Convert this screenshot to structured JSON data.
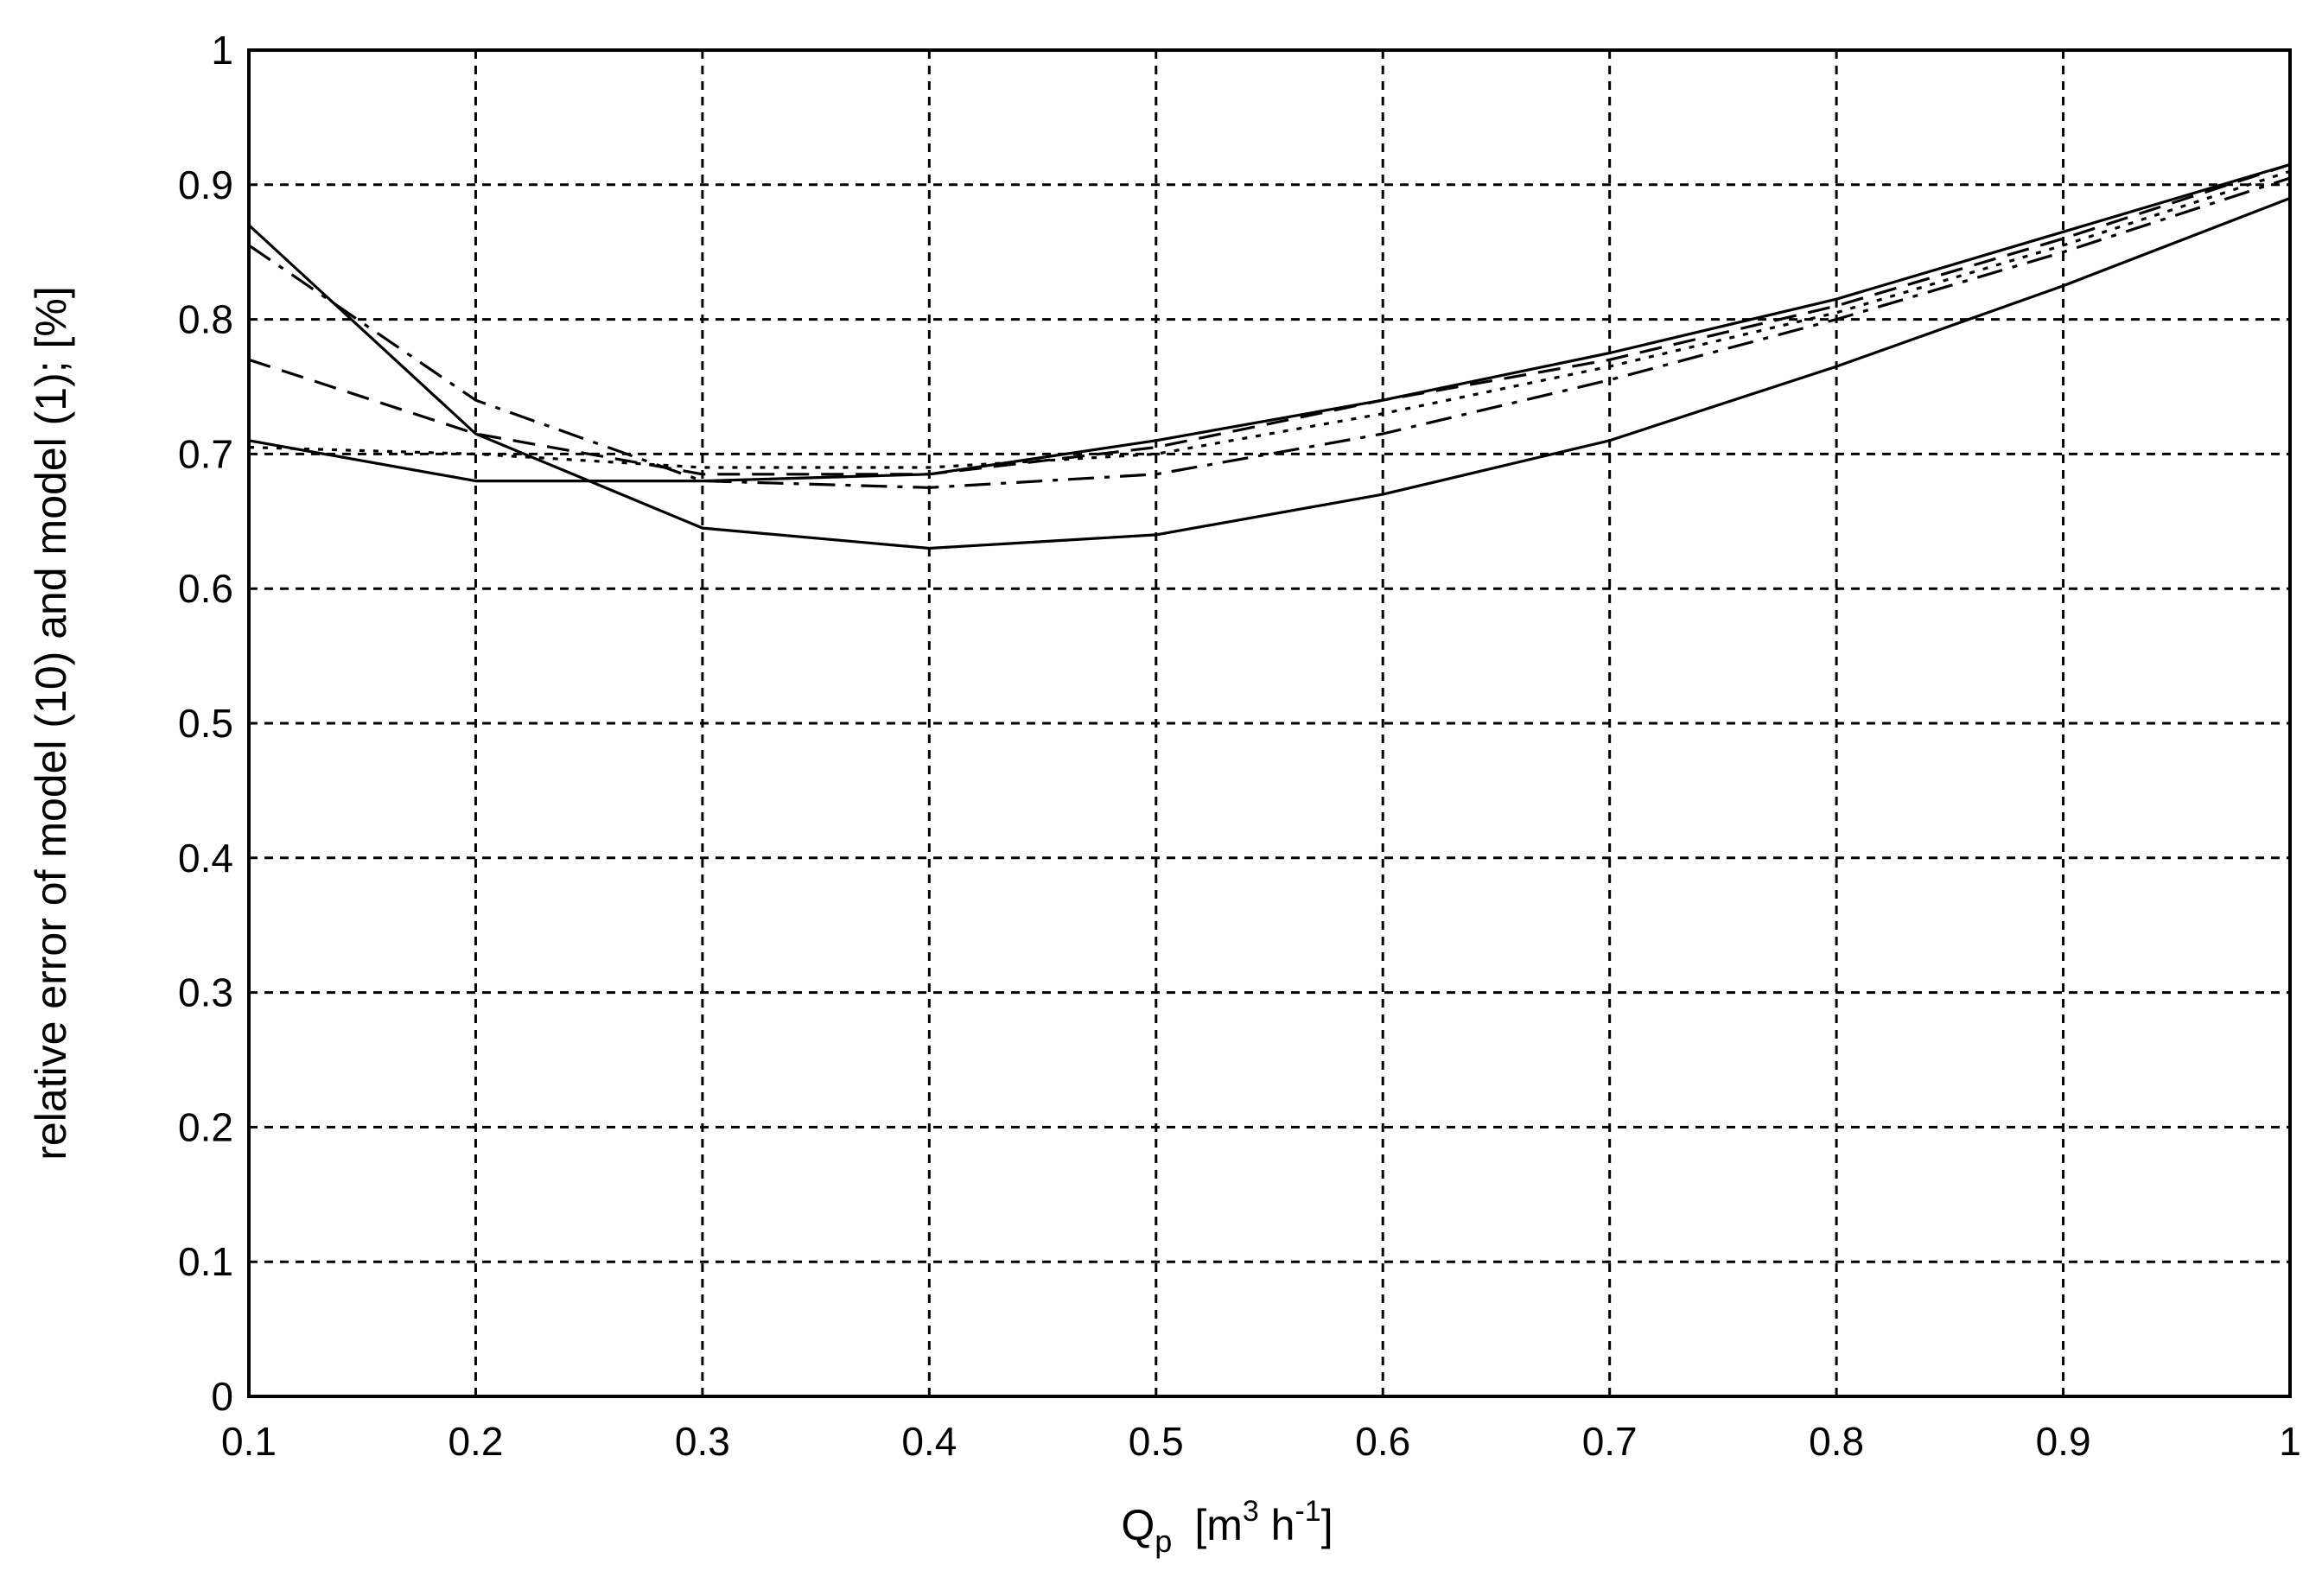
{
  "chart_data": {
    "type": "line",
    "xlabel": {
      "main": "Q",
      "sub": "p",
      "units_open": "[m",
      "sup1": "3",
      "mid": " h",
      "sup2": "-1",
      "units_close": "]"
    },
    "ylabel": "relative error of model (10) and model (1);  [%]",
    "xlim": [
      0.1,
      1
    ],
    "ylim": [
      0,
      1
    ],
    "xticks": [
      "0.1",
      "0.2",
      "0.3",
      "0.4",
      "0.5",
      "0.6",
      "0.7",
      "0.8",
      "0.9",
      "1"
    ],
    "yticks": [
      "0",
      "0.1",
      "0.2",
      "0.3",
      "0.4",
      "0.5",
      "0.6",
      "0.7",
      "0.8",
      "0.9",
      "1"
    ],
    "grid": true,
    "series": [
      {
        "style": "solid",
        "x": [
          0.1,
          0.2,
          0.3,
          0.4,
          0.5,
          0.6,
          0.7,
          0.8,
          0.9,
          1.0
        ],
        "y": [
          0.87,
          0.715,
          0.645,
          0.63,
          0.64,
          0.67,
          0.71,
          0.765,
          0.825,
          0.89
        ]
      },
      {
        "style": "solid",
        "x": [
          0.1,
          0.2,
          0.3,
          0.4,
          0.5,
          0.6,
          0.7,
          0.8,
          0.9,
          1.0
        ],
        "y": [
          0.71,
          0.68,
          0.68,
          0.685,
          0.71,
          0.74,
          0.775,
          0.815,
          0.865,
          0.915
        ]
      },
      {
        "style": "dashed",
        "x": [
          0.1,
          0.2,
          0.3,
          0.4,
          0.5,
          0.6,
          0.7,
          0.8,
          0.9,
          1.0
        ],
        "y": [
          0.77,
          0.715,
          0.685,
          0.685,
          0.705,
          0.74,
          0.77,
          0.81,
          0.86,
          0.915
        ]
      },
      {
        "style": "dashdot",
        "x": [
          0.1,
          0.2,
          0.3,
          0.4,
          0.5,
          0.6,
          0.7,
          0.8,
          0.9,
          1.0
        ],
        "y": [
          0.855,
          0.74,
          0.68,
          0.675,
          0.685,
          0.715,
          0.755,
          0.8,
          0.85,
          0.905
        ]
      },
      {
        "style": "dotted",
        "x": [
          0.1,
          0.2,
          0.3,
          0.4,
          0.5,
          0.6,
          0.7,
          0.8,
          0.9,
          1.0
        ],
        "y": [
          0.705,
          0.7,
          0.69,
          0.69,
          0.7,
          0.73,
          0.765,
          0.805,
          0.855,
          0.91
        ]
      }
    ]
  }
}
